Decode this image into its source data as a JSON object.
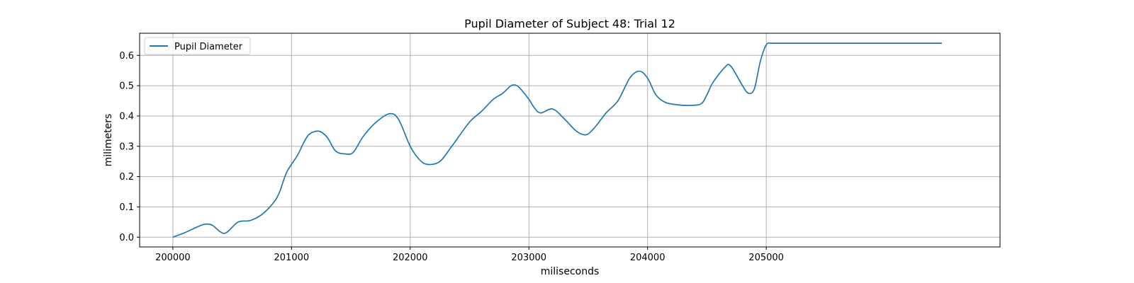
{
  "chart_data": {
    "type": "line",
    "title": "Pupil Diameter of Subject 48: Trial 12",
    "xlabel": "miliseconds",
    "ylabel": "milimeters",
    "xlim": [
      199720,
      206970
    ],
    "ylim": [
      -0.032,
      0.673
    ],
    "xticks": [
      200000,
      201000,
      202000,
      203000,
      204000,
      205000
    ],
    "yticks": [
      0.0,
      0.1,
      0.2,
      0.3,
      0.4,
      0.5,
      0.6
    ],
    "ytick_labels": [
      "0.0",
      "0.1",
      "0.2",
      "0.3",
      "0.4",
      "0.5",
      "0.6"
    ],
    "grid": true,
    "legend_position": "top-left",
    "series": [
      {
        "name": "Pupil Diameter",
        "color": "#1f77b4",
        "x": [
          200000,
          200100,
          200200,
          200270,
          200330,
          200400,
          200450,
          200550,
          200650,
          200750,
          200850,
          200900,
          200960,
          201050,
          201100,
          201150,
          201230,
          201300,
          201370,
          201450,
          201520,
          201600,
          201700,
          201820,
          201900,
          202000,
          202080,
          202150,
          202250,
          202350,
          202500,
          202600,
          202700,
          202780,
          202850,
          202900,
          202950,
          203000,
          203050,
          203100,
          203200,
          203300,
          203400,
          203480,
          203550,
          203650,
          203750,
          203850,
          203930,
          204000,
          204070,
          204150,
          204250,
          204350,
          204450,
          204500,
          204550,
          204650,
          204700,
          204800,
          204850,
          204900,
          204950,
          205000,
          205050,
          205100,
          205500,
          206000,
          206480
        ],
        "y": [
          0.0,
          0.015,
          0.033,
          0.043,
          0.04,
          0.018,
          0.015,
          0.05,
          0.055,
          0.075,
          0.115,
          0.15,
          0.215,
          0.27,
          0.31,
          0.34,
          0.35,
          0.33,
          0.285,
          0.275,
          0.28,
          0.33,
          0.375,
          0.407,
          0.39,
          0.3,
          0.255,
          0.24,
          0.25,
          0.3,
          0.38,
          0.415,
          0.455,
          0.475,
          0.5,
          0.5,
          0.48,
          0.455,
          0.425,
          0.41,
          0.423,
          0.39,
          0.35,
          0.338,
          0.36,
          0.41,
          0.45,
          0.525,
          0.548,
          0.525,
          0.47,
          0.445,
          0.437,
          0.435,
          0.44,
          0.47,
          0.51,
          0.56,
          0.565,
          0.5,
          0.475,
          0.49,
          0.58,
          0.635,
          0.64,
          0.64,
          0.64,
          0.64,
          0.64
        ]
      }
    ]
  }
}
